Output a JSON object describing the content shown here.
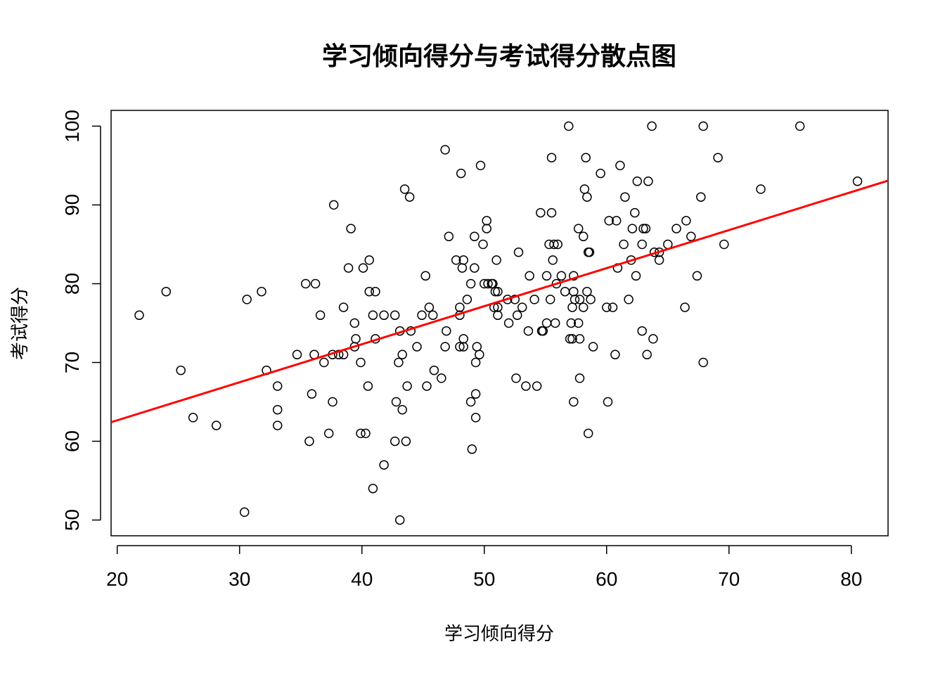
{
  "chart_data": {
    "type": "scatter",
    "title": "学习倾向得分与考试得分散点图",
    "xlabel": "学习倾向得分",
    "ylabel": "考试得分",
    "xlim": [
      19.5,
      83
    ],
    "ylim": [
      48,
      102
    ],
    "x_ticks": [
      20,
      30,
      40,
      50,
      60,
      70,
      80
    ],
    "y_ticks": [
      50,
      60,
      70,
      80,
      90,
      100
    ],
    "grid": false,
    "point_style": "open-circle",
    "point_color": "#000000",
    "fit_line": {
      "color": "#ff0000",
      "intercept": 53.0,
      "slope": 0.4829
    },
    "points": [
      [
        21.8,
        76
      ],
      [
        24.0,
        79
      ],
      [
        25.2,
        69
      ],
      [
        26.2,
        63
      ],
      [
        28.1,
        62
      ],
      [
        30.4,
        51
      ],
      [
        30.6,
        78
      ],
      [
        31.8,
        79
      ],
      [
        32.2,
        69
      ],
      [
        33.1,
        67
      ],
      [
        33.1,
        64
      ],
      [
        33.1,
        62
      ],
      [
        34.7,
        71
      ],
      [
        35.4,
        80
      ],
      [
        35.7,
        60
      ],
      [
        35.9,
        66
      ],
      [
        36.1,
        71
      ],
      [
        36.2,
        80
      ],
      [
        36.6,
        76
      ],
      [
        36.9,
        70
      ],
      [
        37.3,
        61
      ],
      [
        37.6,
        71
      ],
      [
        37.6,
        65
      ],
      [
        37.7,
        90
      ],
      [
        38.1,
        71
      ],
      [
        38.5,
        71
      ],
      [
        38.5,
        77
      ],
      [
        38.9,
        82
      ],
      [
        39.1,
        87
      ],
      [
        39.4,
        75
      ],
      [
        39.5,
        73
      ],
      [
        39.4,
        72
      ],
      [
        39.9,
        70
      ],
      [
        39.9,
        61
      ],
      [
        40.1,
        82
      ],
      [
        40.3,
        61
      ],
      [
        40.5,
        67
      ],
      [
        40.6,
        79
      ],
      [
        40.6,
        83
      ],
      [
        40.9,
        76
      ],
      [
        40.9,
        54
      ],
      [
        41.1,
        79
      ],
      [
        41.1,
        73
      ],
      [
        41.8,
        76
      ],
      [
        41.8,
        57
      ],
      [
        42.7,
        60
      ],
      [
        42.7,
        76
      ],
      [
        42.8,
        65
      ],
      [
        43.0,
        70
      ],
      [
        43.1,
        74
      ],
      [
        43.1,
        50
      ],
      [
        43.3,
        71
      ],
      [
        43.3,
        64
      ],
      [
        43.5,
        92
      ],
      [
        43.6,
        60
      ],
      [
        43.7,
        67
      ],
      [
        43.9,
        91
      ],
      [
        44.0,
        74
      ],
      [
        44.5,
        72
      ],
      [
        44.9,
        76
      ],
      [
        45.2,
        81
      ],
      [
        45.3,
        67
      ],
      [
        45.5,
        77
      ],
      [
        45.8,
        76
      ],
      [
        45.9,
        69
      ],
      [
        46.5,
        68
      ],
      [
        46.8,
        97
      ],
      [
        46.8,
        72
      ],
      [
        46.9,
        74
      ],
      [
        47.1,
        86
      ],
      [
        47.7,
        83
      ],
      [
        48.0,
        76
      ],
      [
        48.0,
        77
      ],
      [
        48.0,
        72
      ],
      [
        48.1,
        94
      ],
      [
        48.2,
        82
      ],
      [
        48.3,
        83
      ],
      [
        48.3,
        73
      ],
      [
        48.3,
        72
      ],
      [
        48.6,
        78
      ],
      [
        48.9,
        80
      ],
      [
        48.9,
        65
      ],
      [
        49.0,
        59
      ],
      [
        49.2,
        82
      ],
      [
        49.2,
        86
      ],
      [
        49.3,
        63
      ],
      [
        49.3,
        70
      ],
      [
        49.3,
        66
      ],
      [
        49.4,
        72
      ],
      [
        49.6,
        71
      ],
      [
        49.7,
        95
      ],
      [
        49.9,
        85
      ],
      [
        50.0,
        80
      ],
      [
        50.2,
        88
      ],
      [
        50.2,
        87
      ],
      [
        50.3,
        80
      ],
      [
        50.6,
        80
      ],
      [
        50.7,
        80
      ],
      [
        50.8,
        77
      ],
      [
        50.9,
        79
      ],
      [
        51.0,
        83
      ],
      [
        51.1,
        76
      ],
      [
        51.1,
        79
      ],
      [
        51.1,
        77
      ],
      [
        51.9,
        78
      ],
      [
        52.0,
        75
      ],
      [
        52.5,
        78
      ],
      [
        52.6,
        68
      ],
      [
        52.7,
        76
      ],
      [
        52.8,
        84
      ],
      [
        53.1,
        77
      ],
      [
        53.4,
        67
      ],
      [
        53.6,
        74
      ],
      [
        53.7,
        81
      ],
      [
        54.1,
        78
      ],
      [
        54.3,
        67
      ],
      [
        54.6,
        89
      ],
      [
        54.7,
        74
      ],
      [
        54.8,
        74
      ],
      [
        55.1,
        81
      ],
      [
        55.1,
        75
      ],
      [
        55.3,
        85
      ],
      [
        55.4,
        78
      ],
      [
        55.5,
        96
      ],
      [
        55.5,
        89
      ],
      [
        55.6,
        83
      ],
      [
        55.7,
        85
      ],
      [
        55.8,
        75
      ],
      [
        55.9,
        80
      ],
      [
        56.0,
        85
      ],
      [
        56.3,
        81
      ],
      [
        56.6,
        79
      ],
      [
        56.9,
        100
      ],
      [
        57.0,
        73
      ],
      [
        57.1,
        75
      ],
      [
        57.2,
        73
      ],
      [
        57.2,
        77
      ],
      [
        57.3,
        81
      ],
      [
        57.3,
        65
      ],
      [
        57.3,
        79
      ],
      [
        57.4,
        78
      ],
      [
        57.7,
        87
      ],
      [
        57.7,
        75
      ],
      [
        57.8,
        78
      ],
      [
        57.8,
        68
      ],
      [
        57.8,
        73
      ],
      [
        58.1,
        77
      ],
      [
        58.1,
        86
      ],
      [
        58.2,
        92
      ],
      [
        58.3,
        96
      ],
      [
        58.4,
        79
      ],
      [
        58.4,
        91
      ],
      [
        58.5,
        84
      ],
      [
        58.6,
        84
      ],
      [
        58.5,
        61
      ],
      [
        58.7,
        78
      ],
      [
        58.9,
        72
      ],
      [
        59.5,
        94
      ],
      [
        60.0,
        77
      ],
      [
        60.1,
        65
      ],
      [
        60.2,
        88
      ],
      [
        60.5,
        77
      ],
      [
        60.7,
        71
      ],
      [
        60.8,
        88
      ],
      [
        60.9,
        82
      ],
      [
        61.1,
        95
      ],
      [
        61.4,
        85
      ],
      [
        61.5,
        91
      ],
      [
        61.8,
        78
      ],
      [
        62.0,
        83
      ],
      [
        62.1,
        87
      ],
      [
        62.3,
        89
      ],
      [
        62.4,
        81
      ],
      [
        62.5,
        93
      ],
      [
        62.9,
        74
      ],
      [
        62.9,
        85
      ],
      [
        63.0,
        87
      ],
      [
        63.2,
        87
      ],
      [
        63.3,
        71
      ],
      [
        63.4,
        93
      ],
      [
        63.7,
        100
      ],
      [
        63.8,
        73
      ],
      [
        63.9,
        84
      ],
      [
        64.3,
        83
      ],
      [
        64.3,
        84
      ],
      [
        65.0,
        85
      ],
      [
        65.7,
        87
      ],
      [
        66.4,
        77
      ],
      [
        66.5,
        88
      ],
      [
        66.9,
        86
      ],
      [
        67.4,
        81
      ],
      [
        67.7,
        91
      ],
      [
        67.9,
        100
      ],
      [
        67.9,
        70
      ],
      [
        69.1,
        96
      ],
      [
        69.6,
        85
      ],
      [
        72.6,
        92
      ],
      [
        75.8,
        100
      ],
      [
        80.5,
        93
      ]
    ]
  }
}
